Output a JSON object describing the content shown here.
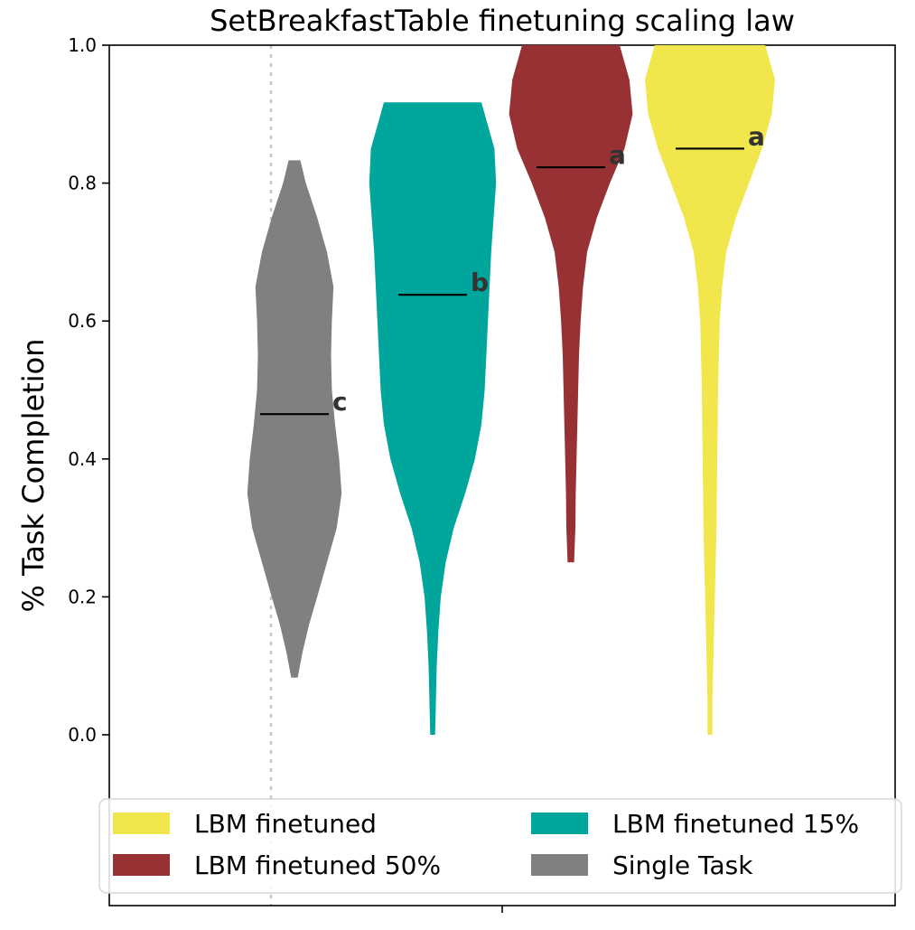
{
  "chart_data": {
    "type": "violin",
    "title": "SetBreakfastTable finetuning scaling law",
    "ylabel": "% Task Completion",
    "xlabel": "",
    "ylim": [
      -0.25,
      1.0
    ],
    "yticks": [
      "0.0",
      "0.2",
      "0.4",
      "0.6",
      "0.8",
      "1.0"
    ],
    "yticks_values": [
      0.0,
      0.2,
      0.4,
      0.6,
      0.8,
      1.0
    ],
    "legend_position": "lower center",
    "series": [
      {
        "name": "Single Task",
        "color": "#808080",
        "median": 0.465,
        "group_letter": "c",
        "range": [
          0.083,
          0.833
        ],
        "profile": [
          [
            0.083,
            0.02
          ],
          [
            0.12,
            0.05
          ],
          [
            0.16,
            0.09
          ],
          [
            0.2,
            0.14
          ],
          [
            0.25,
            0.2
          ],
          [
            0.3,
            0.26
          ],
          [
            0.35,
            0.29
          ],
          [
            0.4,
            0.275
          ],
          [
            0.45,
            0.25
          ],
          [
            0.5,
            0.23
          ],
          [
            0.55,
            0.225
          ],
          [
            0.6,
            0.23
          ],
          [
            0.65,
            0.24
          ],
          [
            0.7,
            0.2
          ],
          [
            0.75,
            0.14
          ],
          [
            0.8,
            0.07
          ],
          [
            0.833,
            0.036
          ]
        ]
      },
      {
        "name": "LBM finetuned 15%",
        "color": "#00a69c",
        "median": 0.638,
        "group_letter": "b",
        "range": [
          0.0,
          0.917
        ],
        "profile": [
          [
            0.0,
            0.015
          ],
          [
            0.05,
            0.02
          ],
          [
            0.1,
            0.025
          ],
          [
            0.15,
            0.035
          ],
          [
            0.2,
            0.05
          ],
          [
            0.25,
            0.08
          ],
          [
            0.3,
            0.13
          ],
          [
            0.35,
            0.2
          ],
          [
            0.4,
            0.26
          ],
          [
            0.45,
            0.3
          ],
          [
            0.5,
            0.32
          ],
          [
            0.55,
            0.33
          ],
          [
            0.6,
            0.34
          ],
          [
            0.65,
            0.35
          ],
          [
            0.7,
            0.36
          ],
          [
            0.75,
            0.375
          ],
          [
            0.8,
            0.39
          ],
          [
            0.85,
            0.38
          ],
          [
            0.9,
            0.32
          ],
          [
            0.917,
            0.3
          ]
        ]
      },
      {
        "name": "LBM finetuned 50%",
        "color": "#983134",
        "median": 0.823,
        "group_letter": "a",
        "range": [
          0.25,
          1.0
        ],
        "profile": [
          [
            0.25,
            0.02
          ],
          [
            0.3,
            0.028
          ],
          [
            0.35,
            0.03
          ],
          [
            0.4,
            0.035
          ],
          [
            0.45,
            0.04
          ],
          [
            0.5,
            0.045
          ],
          [
            0.55,
            0.05
          ],
          [
            0.6,
            0.06
          ],
          [
            0.65,
            0.075
          ],
          [
            0.7,
            0.1
          ],
          [
            0.75,
            0.16
          ],
          [
            0.8,
            0.24
          ],
          [
            0.85,
            0.33
          ],
          [
            0.9,
            0.38
          ],
          [
            0.95,
            0.36
          ],
          [
            1.0,
            0.3
          ]
        ]
      },
      {
        "name": "LBM finetuned",
        "color": "#f1e64c",
        "median": 0.85,
        "group_letter": "a",
        "range": [
          0.0,
          1.0
        ],
        "profile": [
          [
            0.0,
            0.015
          ],
          [
            0.05,
            0.015
          ],
          [
            0.1,
            0.02
          ],
          [
            0.2,
            0.03
          ],
          [
            0.3,
            0.04
          ],
          [
            0.4,
            0.045
          ],
          [
            0.5,
            0.05
          ],
          [
            0.6,
            0.06
          ],
          [
            0.65,
            0.075
          ],
          [
            0.7,
            0.1
          ],
          [
            0.75,
            0.16
          ],
          [
            0.8,
            0.24
          ],
          [
            0.85,
            0.32
          ],
          [
            0.9,
            0.38
          ],
          [
            0.95,
            0.4
          ],
          [
            1.0,
            0.34
          ]
        ]
      }
    ],
    "legend": [
      {
        "label": "LBM finetuned",
        "color": "#f1e64c"
      },
      {
        "label": "LBM finetuned 15%",
        "color": "#00a69c"
      },
      {
        "label": "LBM finetuned 50%",
        "color": "#983134"
      },
      {
        "label": "Single Task",
        "color": "#808080"
      }
    ]
  }
}
